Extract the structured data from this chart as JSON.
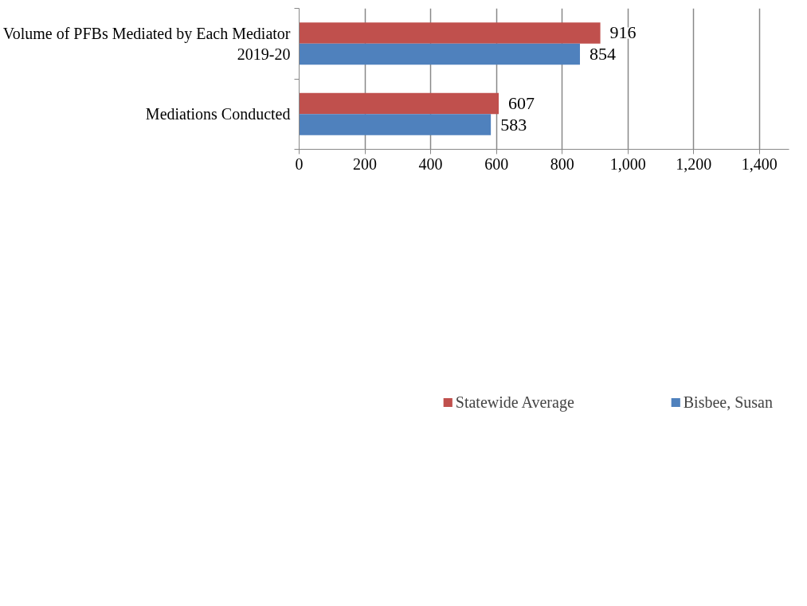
{
  "chart_data": {
    "type": "bar",
    "orientation": "horizontal",
    "categories": [
      "Volume of PFBs Mediated by Each Mediator 2019-20",
      "Mediations Conducted"
    ],
    "series": [
      {
        "name": "Statewide Average",
        "color": "#c0504d",
        "values": [
          916,
          607
        ]
      },
      {
        "name": "Bisbee, Susan",
        "color": "#4f81bd",
        "values": [
          854,
          583
        ]
      }
    ],
    "xlim": [
      0,
      1490
    ],
    "xticks": [
      0,
      200,
      400,
      600,
      800,
      {
        "value": 1000,
        "label": "1,000"
      },
      {
        "value": 1200,
        "label": "1,200"
      },
      {
        "value": 1400,
        "label": "1,400"
      }
    ],
    "data_labels": true,
    "grid": "x",
    "legend": "bottom"
  }
}
